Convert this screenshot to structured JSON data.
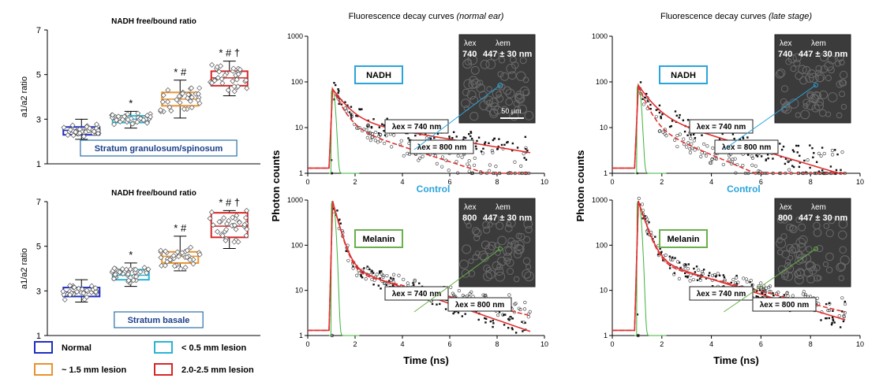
{
  "colors": {
    "normal": "#1f2fbf",
    "lesion_small": "#2bb3d6",
    "lesion_mid": "#e8922f",
    "lesion_late": "#d62728",
    "fit_red": "#e03030",
    "irf_green": "#3cb43c",
    "callout_blue": "#2aa4dc",
    "callout_green": "#6ab04c"
  },
  "legend": [
    {
      "label": "Normal",
      "color_key": "normal"
    },
    {
      "label": "< 0.5 mm lesion",
      "color_key": "lesion_small"
    },
    {
      "label": "~ 1.5 mm lesion",
      "color_key": "lesion_mid"
    },
    {
      "label": "2.0-2.5 mm lesion",
      "color_key": "lesion_late"
    }
  ],
  "chart_data": [
    {
      "type": "box",
      "title": "NADH free/bound ratio",
      "ylabel": "a1/a2 ratio",
      "ylim": [
        1,
        7
      ],
      "yticks": [
        "1",
        "3",
        "5",
        "7"
      ],
      "region_label": "Stratum granulosum/spinosum",
      "groups": [
        {
          "name": "Normal",
          "min": 2.1,
          "q1": 2.3,
          "median": 2.5,
          "q3": 2.65,
          "max": 3.0,
          "sig": ""
        },
        {
          "name": "< 0.5 mm lesion",
          "min": 2.6,
          "q1": 2.85,
          "median": 3.0,
          "q3": 3.15,
          "max": 3.35,
          "sig": "*"
        },
        {
          "name": "~ 1.5 mm lesion",
          "min": 3.05,
          "q1": 3.6,
          "median": 3.9,
          "q3": 4.2,
          "max": 4.75,
          "sig": "* #"
        },
        {
          "name": "2.0-2.5 mm lesion",
          "min": 4.05,
          "q1": 4.5,
          "median": 4.85,
          "q3": 5.15,
          "max": 5.6,
          "sig": "* # †"
        }
      ]
    },
    {
      "type": "box",
      "title": "NADH free/bound ratio",
      "ylabel": "a1/a2 ratio",
      "ylim": [
        1,
        7
      ],
      "yticks": [
        "1",
        "3",
        "5",
        "7"
      ],
      "region_label": "Stratum basale",
      "groups": [
        {
          "name": "Normal",
          "min": 2.5,
          "q1": 2.75,
          "median": 2.95,
          "q3": 3.15,
          "max": 3.5,
          "sig": ""
        },
        {
          "name": "< 0.5 mm lesion",
          "min": 3.2,
          "q1": 3.5,
          "median": 3.7,
          "q3": 3.95,
          "max": 4.25,
          "sig": "*"
        },
        {
          "name": "~ 1.5 mm lesion",
          "min": 3.9,
          "q1": 4.25,
          "median": 4.55,
          "q3": 4.75,
          "max": 5.45,
          "sig": "* #"
        },
        {
          "name": "2.0-2.5 mm lesion",
          "min": 4.9,
          "q1": 5.4,
          "median": 5.9,
          "q3": 6.5,
          "max": 6.6,
          "sig": "* # †"
        }
      ]
    },
    {
      "type": "line",
      "title_main": "Fluorescence decay curves",
      "title_sub": "(normal ear)",
      "ylabel": "Photon counts",
      "xlabel": "Time (ns)",
      "xlim": [
        0,
        10
      ],
      "xticks": [
        "0",
        "2",
        "4",
        "6",
        "8",
        "10"
      ],
      "panels": [
        {
          "name": "NADH",
          "ylim_log": [
            1,
            1000
          ],
          "yticks": [
            "1",
            "10",
            "100",
            "1000"
          ],
          "peak": 70,
          "curve_a": {
            "label_lambda": "λex = 740 nm",
            "a1": 55,
            "t1": 0.5,
            "a2": 15,
            "t2": 5.0
          },
          "curve_b": {
            "label_lambda": "λex = 800 nm",
            "a1": 58,
            "t1": 0.35,
            "a2": 12,
            "t2": 2.6
          },
          "inset": {
            "ex_label": "λex",
            "em_label": "λem",
            "ex_value": "740",
            "em_value": "447 ± 30 nm",
            "scale": "50 μm"
          }
        },
        {
          "name": "Melanin",
          "ylim_log": [
            1,
            1000
          ],
          "yticks": [
            "1",
            "10",
            "100",
            "1000"
          ],
          "peak": 950,
          "curve_a": {
            "label_lambda": "λex = 740 nm",
            "a1": 900,
            "t1": 0.22,
            "a2": 40,
            "t2": 2.4
          },
          "curve_b": {
            "label_lambda": "λex = 800 nm",
            "a1": 900,
            "t1": 0.22,
            "a2": 30,
            "t2": 3.5
          },
          "inset": {
            "ex_label": "λex",
            "em_label": "λem",
            "ex_value": "800",
            "em_value": "447 ± 30 nm",
            "scale": ""
          }
        }
      ],
      "control_label": "Control"
    },
    {
      "type": "line",
      "title_main": "Fluorescence decay curves",
      "title_sub": "(late stage)",
      "ylabel": "Photon counts",
      "xlabel": "Time (ns)",
      "xlim": [
        0,
        10
      ],
      "xticks": [
        "0",
        "2",
        "4",
        "6",
        "8",
        "10"
      ],
      "panels": [
        {
          "name": "NADH",
          "ylim_log": [
            1,
            1000
          ],
          "yticks": [
            "1",
            "10",
            "100",
            "1000"
          ],
          "peak": 85,
          "curve_a": {
            "label_lambda": "λex = 740 nm",
            "a1": 65,
            "t1": 0.45,
            "a2": 20,
            "t2": 2.7
          },
          "curve_b": {
            "label_lambda": "λex = 800 nm",
            "a1": 70,
            "t1": 0.3,
            "a2": 12,
            "t2": 1.9
          },
          "inset": {
            "ex_label": "λex",
            "em_label": "λem",
            "ex_value": "740",
            "em_value": "447 ± 30 nm",
            "scale": ""
          }
        },
        {
          "name": "Melanin",
          "ylim_log": [
            1,
            1000
          ],
          "yticks": [
            "1",
            "10",
            "100",
            "1000"
          ],
          "peak": 950,
          "curve_a": {
            "label_lambda": "λex = 740 nm",
            "a1": 900,
            "t1": 0.25,
            "a2": 55,
            "t2": 2.6
          },
          "curve_b": {
            "label_lambda": "λex = 800 nm",
            "a1": 900,
            "t1": 0.25,
            "a2": 45,
            "t2": 3.2
          },
          "inset": {
            "ex_label": "λex",
            "em_label": "λem",
            "ex_value": "800",
            "em_value": "447 ± 30 nm",
            "scale": ""
          }
        }
      ],
      "control_label": "Control"
    }
  ]
}
